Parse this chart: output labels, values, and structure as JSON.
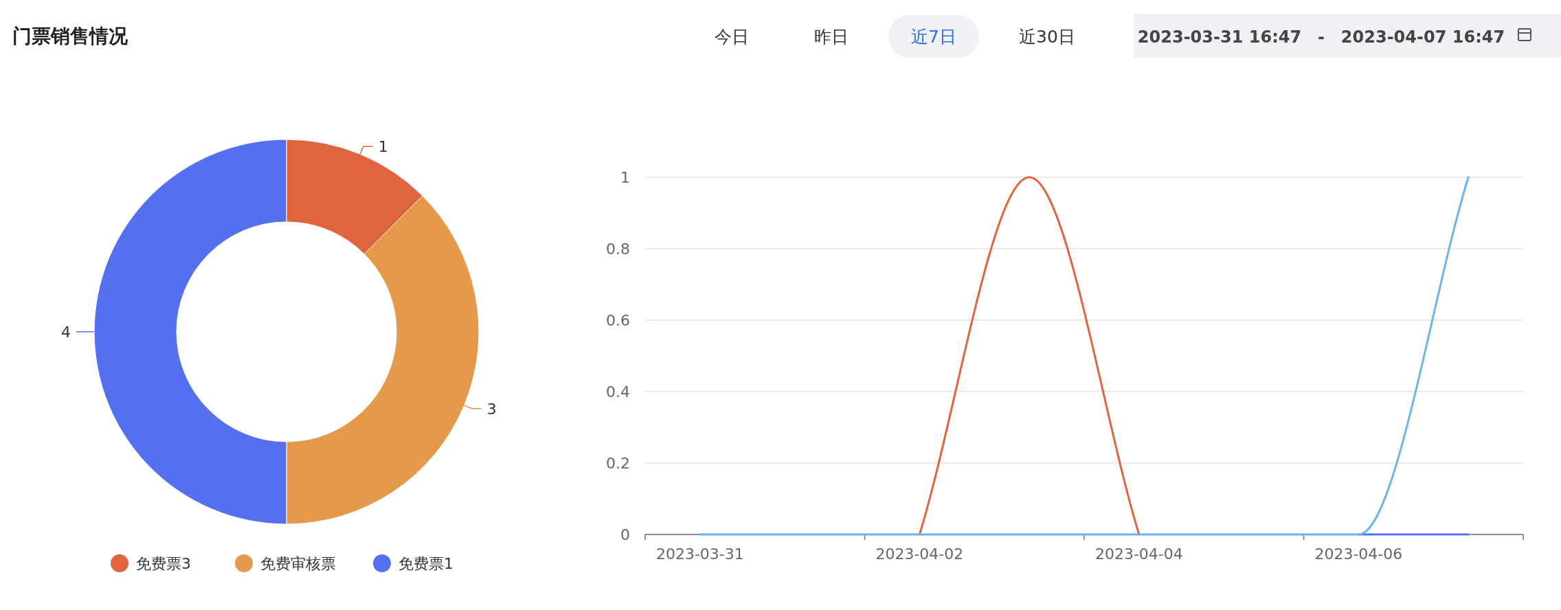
{
  "chart_data": [
    {
      "type": "donut",
      "title": "门票销售情况",
      "categories": [
        "免费票3",
        "免费审核票",
        "免费票1"
      ],
      "values": [
        1,
        3,
        4
      ],
      "colors": [
        "#e0643e",
        "#e5994b",
        "#5470ee"
      ],
      "data_labels": true,
      "legend": "bottom",
      "annotations": [
        "今日",
        "昨日",
        "近7日",
        "近30日",
        "2023-03-31 16:47",
        "-",
        "2023-04-07 16:47"
      ]
    },
    {
      "type": "line",
      "categories": [
        "2023-03-31",
        null,
        "2023-04-02",
        null,
        "2023-04-04",
        null,
        "2023-04-06",
        null
      ],
      "series": [
        {
          "color": "#e0643e",
          "values": [
            null,
            null,
            0,
            1,
            0,
            null,
            null,
            null
          ]
        },
        {
          "color": "#5470ee",
          "values": [
            null,
            null,
            null,
            null,
            null,
            null,
            0,
            0
          ]
        },
        {
          "color": "#6ab4f0",
          "values": [
            0,
            0,
            0,
            0,
            0,
            0,
            0,
            1
          ]
        }
      ],
      "ylim": [
        0,
        1
      ],
      "yticks": [
        0,
        0.2,
        0.4,
        0.6,
        0.8,
        1
      ],
      "grid": "y",
      "marker": "none",
      "line_style": "solid"
    }
  ]
}
